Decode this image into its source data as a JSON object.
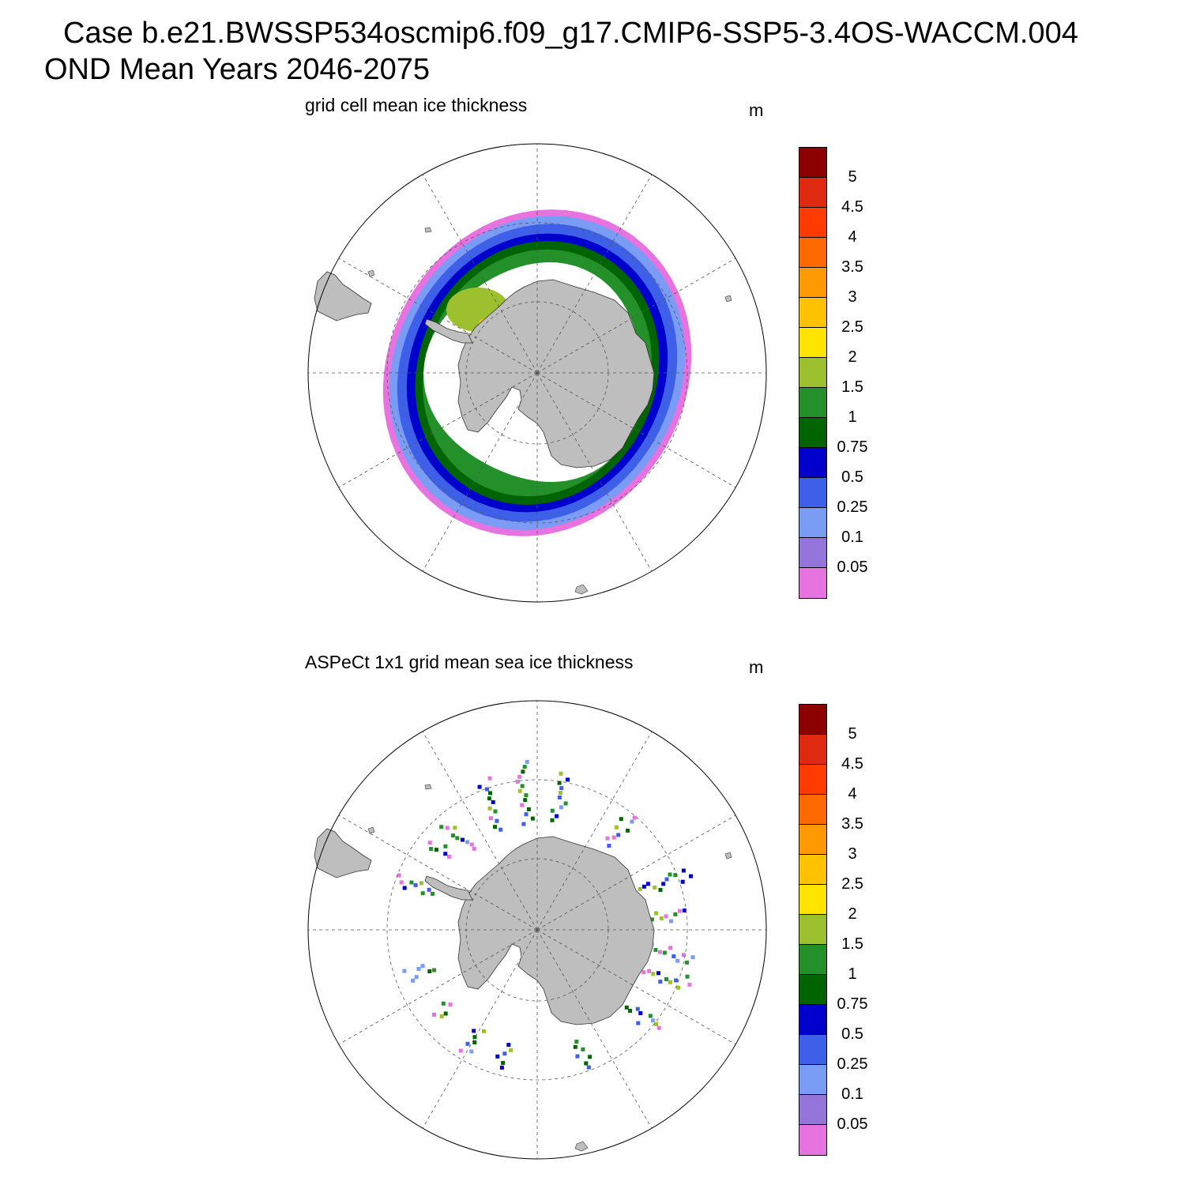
{
  "header": {
    "case_line": "Case b.e21.BWSSP534oscmip6.f09_g17.CMIP6-SSP5-3.4OS-WACCM.004",
    "period_line": "OND Mean   Years 2046-2075"
  },
  "panels": [
    {
      "title": "grid cell mean ice thickness",
      "units": "m",
      "kind": "model"
    },
    {
      "title": "ASPeCt 1x1 grid mean sea ice thickness",
      "units": "m",
      "kind": "observation"
    }
  ],
  "colorbar": {
    "colors": [
      "#8b0000",
      "#dd2a10",
      "#ff3b00",
      "#ff6a00",
      "#ff9900",
      "#ffc200",
      "#ffe400",
      "#9dc02e",
      "#23902a",
      "#006400",
      "#0000cd",
      "#3e60e8",
      "#7a9cf5",
      "#9575dc",
      "#e673df"
    ],
    "labels": [
      "5",
      "4.5",
      "4",
      "3.5",
      "3",
      "2.5",
      "2",
      "1.5",
      "1",
      "0.75",
      "0.5",
      "0.25",
      "0.1",
      "0.05"
    ]
  },
  "style": {
    "land": "#bebebe",
    "background": "#ffffff",
    "grid": "#555555"
  }
}
